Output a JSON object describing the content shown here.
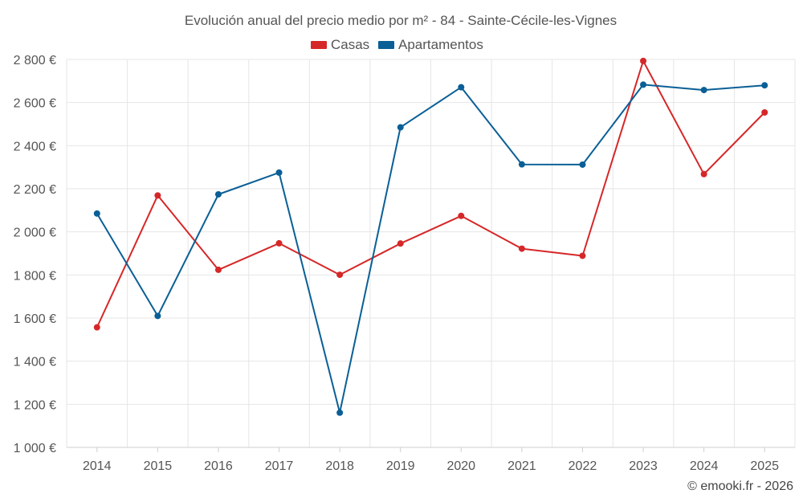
{
  "chart_data": {
    "type": "line",
    "title": "Evolución anual del precio medio por m² - 84 - Sainte-Cécile-les-Vignes",
    "categories": [
      "2014",
      "2015",
      "2016",
      "2017",
      "2018",
      "2019",
      "2020",
      "2021",
      "2022",
      "2023",
      "2024",
      "2025"
    ],
    "series": [
      {
        "name": "Casas",
        "color": "#d62728",
        "values": [
          1557,
          2169,
          1824,
          1947,
          1801,
          1946,
          2074,
          1922,
          1889,
          2793,
          2268,
          2554
        ]
      },
      {
        "name": "Apartamentos",
        "color": "#0a5f96",
        "values": [
          2085,
          1610,
          2174,
          2275,
          1161,
          2485,
          2671,
          2313,
          2312,
          2683,
          2658,
          2680
        ]
      }
    ],
    "ylim": [
      1000,
      2800
    ],
    "yticks": [
      1000,
      1200,
      1400,
      1600,
      1800,
      2000,
      2200,
      2400,
      2600,
      2800
    ],
    "ytick_labels": [
      "1 000 €",
      "1 200 €",
      "1 400 €",
      "1 600 €",
      "1 800 €",
      "2 000 €",
      "2 200 €",
      "2 400 €",
      "2 600 €",
      "2 800 €"
    ],
    "xlabel": "",
    "ylabel": "",
    "grid": true,
    "legend_position": "top-center",
    "credit": "© emooki.fr - 2026"
  }
}
